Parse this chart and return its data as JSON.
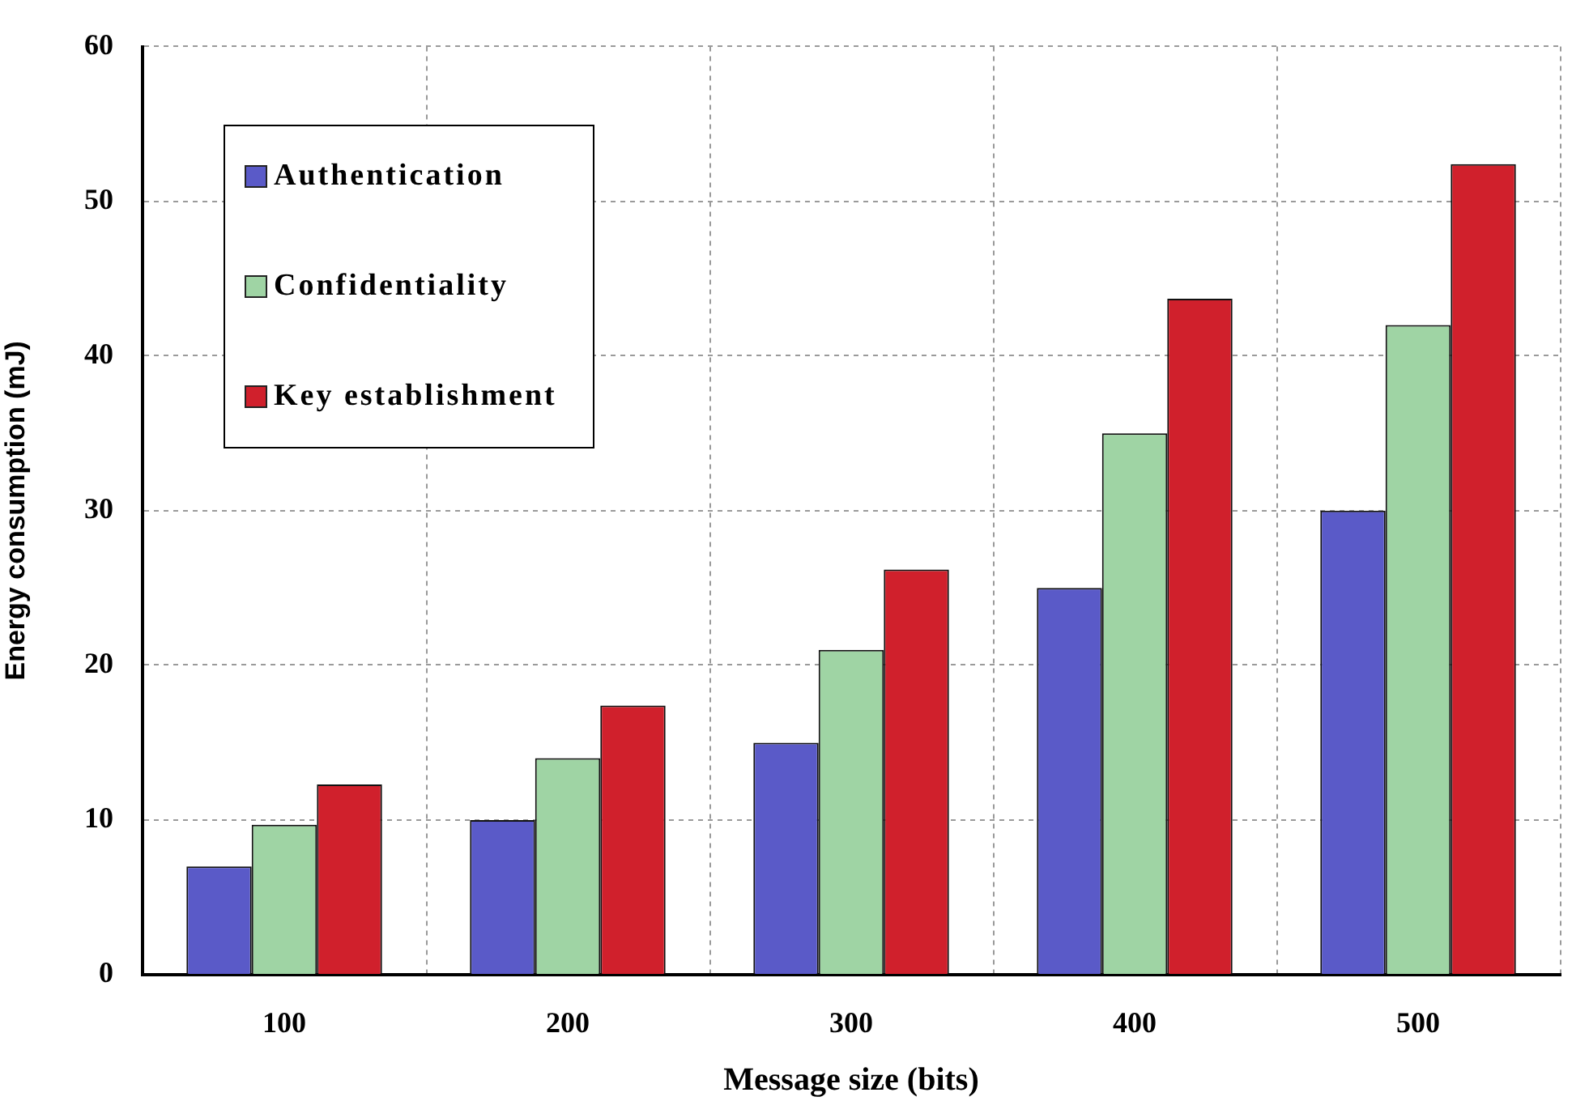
{
  "chart_data": {
    "type": "bar",
    "xlabel": "Message size (bits)",
    "ylabel": "Energy consumption (mJ)",
    "categories": [
      "100",
      "200",
      "300",
      "400",
      "500"
    ],
    "series": [
      {
        "name": "Authentication",
        "color": "#5a5ac8",
        "values": [
          7,
          10,
          15,
          25,
          30
        ]
      },
      {
        "name": "Confidentiality",
        "color": "#9fd4a4",
        "values": [
          9.7,
          14,
          21,
          35,
          42
        ]
      },
      {
        "name": "Key establishment",
        "color": "#d0202c",
        "values": [
          12.3,
          17.4,
          26.2,
          43.7,
          52.4
        ]
      }
    ],
    "ylim": [
      0,
      60
    ],
    "yticks": [
      0,
      10,
      20,
      30,
      40,
      50,
      60
    ],
    "grid": true,
    "legend": "top left"
  }
}
